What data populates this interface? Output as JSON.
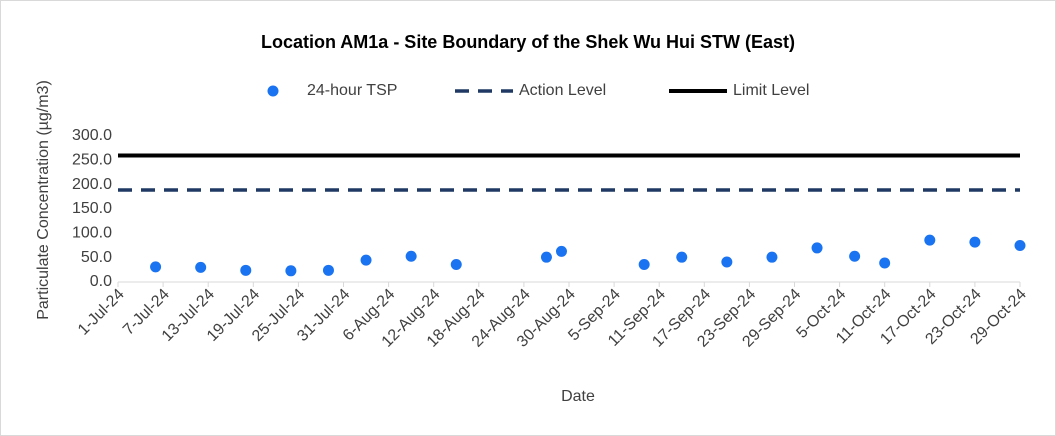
{
  "chart_data": {
    "type": "scatter",
    "title": "Location AM1a - Site Boundary of the Shek Wu Hui STW (East)",
    "x_label": "Date",
    "y_label": "Particulate Concentration (µg/m3)",
    "series": [
      {
        "name": "24-hour TSP",
        "color": "#1a73f0",
        "x": [
          "2024-07-06",
          "2024-07-12",
          "2024-07-18",
          "2024-07-24",
          "2024-07-29",
          "2024-08-03",
          "2024-08-09",
          "2024-08-15",
          "2024-08-27",
          "2024-08-29",
          "2024-09-09",
          "2024-09-14",
          "2024-09-20",
          "2024-09-26",
          "2024-10-02",
          "2024-10-07",
          "2024-10-11",
          "2024-10-17",
          "2024-10-23",
          "2024-10-29"
        ],
        "values": [
          31,
          30,
          24,
          23,
          24,
          45,
          53,
          36,
          51,
          63,
          36,
          51,
          41,
          51,
          70,
          53,
          39,
          86,
          82,
          75
        ]
      }
    ],
    "reference_lines": [
      {
        "name": "Action Level",
        "value": 189,
        "color": "#1f3864",
        "style": "dashed"
      },
      {
        "name": "Limit Level",
        "value": 260,
        "color": "#000000",
        "style": "solid"
      }
    ],
    "xlim": [
      "2024-07-01",
      "2024-10-29"
    ],
    "xticks": [
      {
        "value": "2024-07-01",
        "label": "1-Jul-24"
      },
      {
        "value": "2024-07-07",
        "label": "7-Jul-24"
      },
      {
        "value": "2024-07-13",
        "label": "13-Jul-24"
      },
      {
        "value": "2024-07-19",
        "label": "19-Jul-24"
      },
      {
        "value": "2024-07-25",
        "label": "25-Jul-24"
      },
      {
        "value": "2024-07-31",
        "label": "31-Jul-24"
      },
      {
        "value": "2024-08-06",
        "label": "6-Aug-24"
      },
      {
        "value": "2024-08-12",
        "label": "12-Aug-24"
      },
      {
        "value": "2024-08-18",
        "label": "18-Aug-24"
      },
      {
        "value": "2024-08-24",
        "label": "24-Aug-24"
      },
      {
        "value": "2024-08-30",
        "label": "30-Aug-24"
      },
      {
        "value": "2024-09-05",
        "label": "5-Sep-24"
      },
      {
        "value": "2024-09-11",
        "label": "11-Sep-24"
      },
      {
        "value": "2024-09-17",
        "label": "17-Sep-24"
      },
      {
        "value": "2024-09-23",
        "label": "23-Sep-24"
      },
      {
        "value": "2024-09-29",
        "label": "29-Sep-24"
      },
      {
        "value": "2024-10-05",
        "label": "5-Oct-24"
      },
      {
        "value": "2024-10-11",
        "label": "11-Oct-24"
      },
      {
        "value": "2024-10-17",
        "label": "17-Oct-24"
      },
      {
        "value": "2024-10-23",
        "label": "23-Oct-24"
      },
      {
        "value": "2024-10-29",
        "label": "29-Oct-24"
      }
    ],
    "ylim": [
      0,
      300
    ],
    "yticks": [
      {
        "value": 0,
        "label": "0.0"
      },
      {
        "value": 50,
        "label": "50.0"
      },
      {
        "value": 100,
        "label": "100.0"
      },
      {
        "value": 150,
        "label": "150.0"
      },
      {
        "value": 200,
        "label": "200.0"
      },
      {
        "value": 250,
        "label": "250.0"
      },
      {
        "value": 300,
        "label": "300.0"
      }
    ],
    "legend": "top",
    "grid": false
  }
}
